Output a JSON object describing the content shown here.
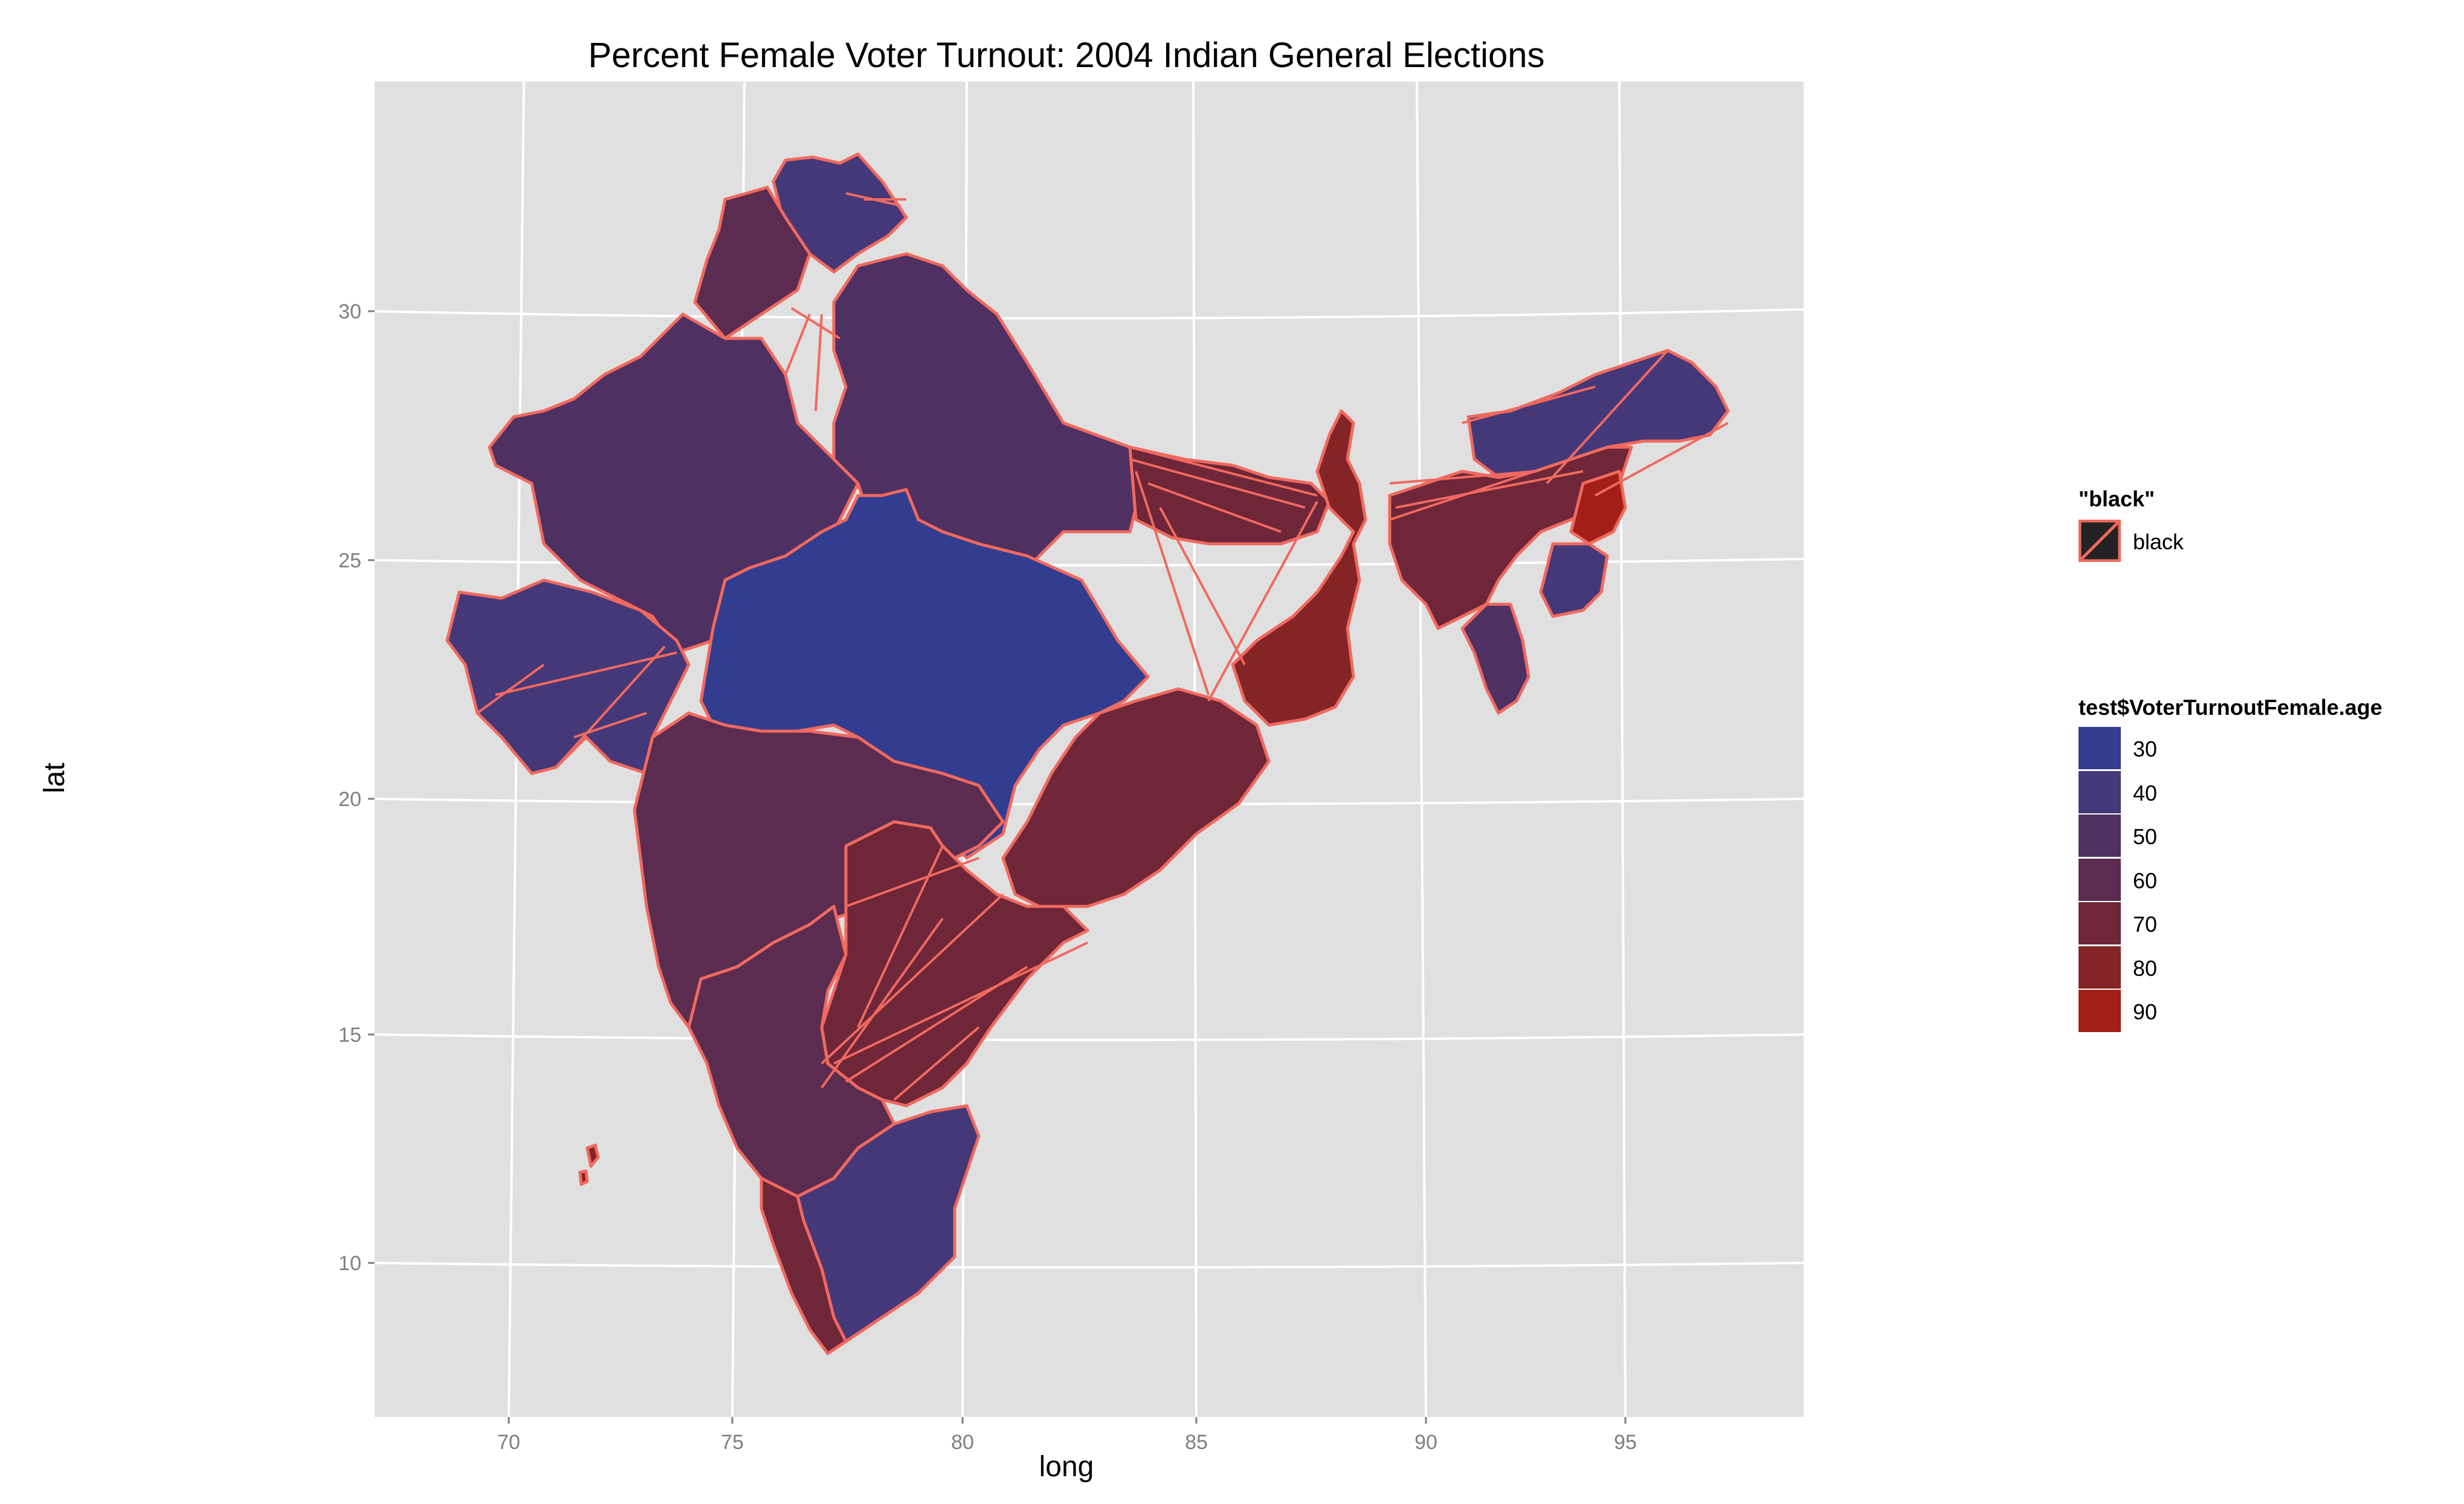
{
  "map": {
    "title": "Percent Female Voter Turnout: 2004 Indian General Elections",
    "xlabel": "long",
    "ylabel": "lat",
    "x_ticks": [
      "70",
      "75",
      "80",
      "85",
      "90",
      "95"
    ],
    "y_ticks": [
      "30",
      "25",
      "20",
      "15",
      "10"
    ],
    "panel_background": "#e0e0e0",
    "gridline_color": "#ffffff",
    "border_color": "#f0695f"
  },
  "legend_color": {
    "title": "\"black\"",
    "label": "black",
    "swatch_fill": "#222222",
    "swatch_line": "#f0695f"
  },
  "legend_fill": {
    "title": "test$VoterTurnoutFemale.age",
    "items": [
      {
        "label": "30",
        "color": "#323d90"
      },
      {
        "label": "40",
        "color": "#453878"
      },
      {
        "label": "50",
        "color": "#4f3063"
      },
      {
        "label": "60",
        "color": "#5b2c4f"
      },
      {
        "label": "70",
        "color": "#6e2638"
      },
      {
        "label": "80",
        "color": "#842426"
      },
      {
        "label": "90",
        "color": "#a41e18"
      }
    ]
  },
  "chart_data": {
    "type": "choropleth",
    "title": "Percent Female Voter Turnout: 2004 Indian General Elections",
    "xlabel": "long",
    "ylabel": "lat",
    "xlim": [
      66.5,
      98.5
    ],
    "ylim": [
      6.5,
      35
    ],
    "fill_scale": {
      "name": "test$VoterTurnoutFemale.age",
      "breaks": [
        30,
        40,
        50,
        60,
        70,
        80,
        90
      ]
    },
    "legend_position": "right",
    "grid": true
  }
}
